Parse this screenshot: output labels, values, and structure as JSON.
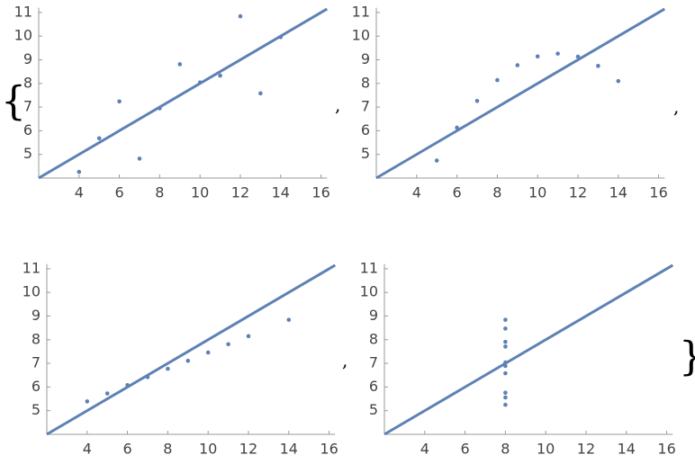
{
  "brackets": {
    "open": "{",
    "separator": ",",
    "close": "}"
  },
  "chart_data": [
    {
      "type": "scatter",
      "color": "#5e81b5",
      "x": [
        10,
        8,
        13,
        9,
        11,
        14,
        6,
        4,
        12,
        7,
        5
      ],
      "values": [
        8.04,
        6.95,
        7.58,
        8.81,
        8.33,
        9.96,
        7.24,
        4.26,
        10.84,
        4.82,
        5.68
      ],
      "fit": {
        "x": [
          2,
          16.3
        ],
        "values": [
          4,
          11.15
        ]
      },
      "xlim": [
        2,
        16.3
      ],
      "ylim": [
        4,
        11.2
      ],
      "xticks": [
        4,
        6,
        8,
        10,
        12,
        14,
        16
      ],
      "yticks": [
        5,
        6,
        7,
        8,
        9,
        10,
        11
      ]
    },
    {
      "type": "scatter",
      "color": "#5e81b5",
      "x": [
        10,
        8,
        13,
        9,
        11,
        14,
        6,
        12,
        7,
        5
      ],
      "values": [
        9.14,
        8.14,
        8.74,
        8.77,
        9.26,
        8.1,
        6.13,
        9.13,
        7.26,
        4.74
      ],
      "fit": {
        "x": [
          2,
          16.3
        ],
        "values": [
          4,
          11.15
        ]
      },
      "xlim": [
        2,
        16.3
      ],
      "ylim": [
        4,
        11.2
      ],
      "xticks": [
        4,
        6,
        8,
        10,
        12,
        14,
        16
      ],
      "yticks": [
        5,
        6,
        7,
        8,
        9,
        10,
        11
      ]
    },
    {
      "type": "scatter",
      "color": "#5e81b5",
      "x": [
        10,
        8,
        9,
        11,
        14,
        6,
        4,
        12,
        7,
        5
      ],
      "values": [
        7.46,
        6.77,
        7.11,
        7.81,
        8.84,
        6.08,
        5.39,
        8.15,
        6.42,
        5.73
      ],
      "fit": {
        "x": [
          2,
          16.3
        ],
        "values": [
          4,
          11.15
        ]
      },
      "xlim": [
        2,
        16.3
      ],
      "ylim": [
        4,
        11.2
      ],
      "xticks": [
        4,
        6,
        8,
        10,
        12,
        14,
        16
      ],
      "yticks": [
        5,
        6,
        7,
        8,
        9,
        10,
        11
      ]
    },
    {
      "type": "scatter",
      "color": "#5e81b5",
      "x": [
        8,
        8,
        8,
        8,
        8,
        8,
        8,
        8,
        8,
        8
      ],
      "values": [
        6.58,
        5.76,
        7.71,
        8.84,
        8.47,
        7.04,
        5.25,
        5.56,
        7.91,
        6.89
      ],
      "fit": {
        "x": [
          2,
          16.3
        ],
        "values": [
          4,
          11.15
        ]
      },
      "xlim": [
        2,
        16.3
      ],
      "ylim": [
        4,
        11.2
      ],
      "xticks": [
        4,
        6,
        8,
        10,
        12,
        14,
        16
      ],
      "yticks": [
        5,
        6,
        7,
        8,
        9,
        10,
        11
      ]
    }
  ]
}
